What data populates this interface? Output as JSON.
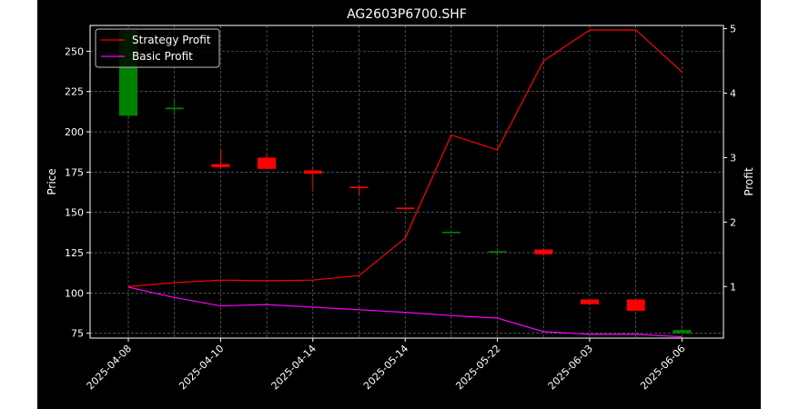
{
  "chart_data": {
    "type": "candlestick+line",
    "title": "AG2603P6700.SHF",
    "ylabel_left": "Price",
    "ylabel_right": "Profit",
    "ylim_left": [
      72,
      266
    ],
    "ylim_right": [
      0.2,
      5.05
    ],
    "yticks_left": [
      75,
      100,
      125,
      150,
      175,
      200,
      225,
      250
    ],
    "yticks_right": [
      1,
      2,
      3,
      4,
      5
    ],
    "x_tick_labels": [
      "2025-04-08",
      "2025-04-10",
      "2025-04-14",
      "2025-05-14",
      "2025-05-22",
      "2025-06-03",
      "2025-06-06"
    ],
    "grid": true,
    "legend_placement": "top-left",
    "candles": [
      {
        "open": 210,
        "high": 263,
        "low": 208,
        "close": 263,
        "color": "green"
      },
      {
        "open": 214,
        "high": 220,
        "low": 210,
        "close": 215,
        "color": "green"
      },
      {
        "open": 180,
        "high": 189,
        "low": 177,
        "close": 178,
        "color": "red"
      },
      {
        "open": 184,
        "high": 186,
        "low": 177,
        "close": 177,
        "color": "red"
      },
      {
        "open": 176,
        "high": 177,
        "low": 164,
        "close": 174,
        "color": "red"
      },
      {
        "open": 166,
        "high": 166,
        "low": 161,
        "close": 166,
        "color": "red"
      },
      {
        "open": 153,
        "high": 153,
        "low": 153,
        "close": 153,
        "color": "red"
      },
      {
        "open": 138,
        "high": 138,
        "low": 138,
        "close": 138,
        "color": "green"
      },
      {
        "open": 126,
        "high": 126,
        "low": 126,
        "close": 126,
        "color": "green"
      },
      {
        "open": 127,
        "high": 127,
        "low": 123,
        "close": 124,
        "color": "red"
      },
      {
        "open": 96,
        "high": 96,
        "low": 93,
        "close": 93,
        "color": "red"
      },
      {
        "open": 96,
        "high": 96,
        "low": 89,
        "close": 89,
        "color": "red"
      },
      {
        "open": 75,
        "high": 78,
        "low": 75,
        "close": 77,
        "color": "green"
      }
    ],
    "series": [
      {
        "name": "Strategy Profit",
        "color": "#ff0000",
        "x": [
          0,
          1,
          2,
          3,
          4,
          5,
          6,
          7,
          8,
          9,
          10,
          11,
          12
        ],
        "values": [
          1.0,
          1.06,
          1.1,
          1.09,
          1.1,
          1.17,
          1.75,
          3.35,
          3.12,
          4.5,
          4.98,
          4.98,
          4.33
        ]
      },
      {
        "name": "Basic Profit",
        "color": "#ff00ff",
        "x": [
          0,
          1,
          2,
          3,
          4,
          5,
          6,
          7,
          8,
          9,
          10,
          11,
          12
        ],
        "values": [
          0.99,
          0.83,
          0.7,
          0.72,
          0.68,
          0.64,
          0.6,
          0.55,
          0.51,
          0.3,
          0.26,
          0.26,
          0.22
        ]
      }
    ]
  }
}
